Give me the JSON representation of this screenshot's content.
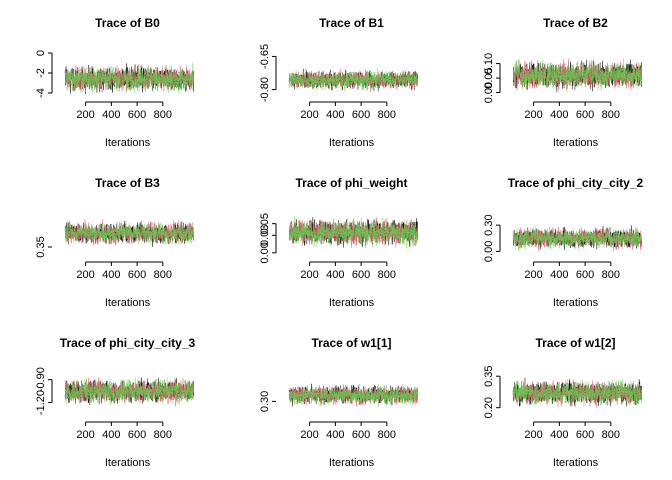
{
  "chart_data": [
    {
      "type": "line",
      "title": "Trace of B0",
      "xlabel": "Iterations",
      "ylabel": "",
      "xlim": [
        1,
        1050
      ],
      "ylim": [
        -4.1,
        0.1
      ],
      "x_ticks": [
        200,
        400,
        600,
        800
      ],
      "y_ticks": [
        -4,
        -2,
        0
      ],
      "series": [
        {
          "center": -2.6,
          "spread": 0.55,
          "color": "#000000"
        },
        {
          "center": -2.6,
          "spread": 0.55,
          "color": "#DF536B"
        },
        {
          "center": -2.6,
          "spread": 0.55,
          "color": "#61D04F"
        }
      ]
    },
    {
      "type": "line",
      "title": "Trace of B1",
      "xlabel": "Iterations",
      "ylabel": "",
      "xlim": [
        1,
        1050
      ],
      "ylim": [
        -0.82,
        -0.63
      ],
      "x_ticks": [
        200,
        400,
        600,
        800
      ],
      "y_ticks": [
        -0.8,
        -0.65
      ],
      "series": [
        {
          "center": -0.755,
          "spread": 0.018,
          "color": "#000000"
        },
        {
          "center": -0.755,
          "spread": 0.018,
          "color": "#DF536B"
        },
        {
          "center": -0.755,
          "spread": 0.018,
          "color": "#61D04F"
        }
      ]
    },
    {
      "type": "line",
      "title": "Trace of B2",
      "xlabel": "Iterations",
      "ylabel": "",
      "xlim": [
        1,
        1050
      ],
      "ylim": [
        -0.005,
        0.14
      ],
      "x_ticks": [
        200,
        400,
        600,
        800
      ],
      "y_ticks": [
        0.0,
        0.05,
        0.1
      ],
      "series": [
        {
          "center": 0.06,
          "spread": 0.02,
          "color": "#000000"
        },
        {
          "center": 0.06,
          "spread": 0.02,
          "color": "#DF536B"
        },
        {
          "center": 0.06,
          "spread": 0.02,
          "color": "#61D04F"
        }
      ]
    },
    {
      "type": "line",
      "title": "Trace of B3",
      "xlabel": "Iterations",
      "ylabel": "",
      "xlim": [
        1,
        1050
      ],
      "ylim": [
        0.32,
        0.5
      ],
      "x_ticks": [
        200,
        400,
        600,
        800
      ],
      "y_ticks": [
        0.35
      ],
      "series": [
        {
          "center": 0.41,
          "spread": 0.02,
          "color": "#000000"
        },
        {
          "center": 0.41,
          "spread": 0.02,
          "color": "#DF536B"
        },
        {
          "center": 0.41,
          "spread": 0.02,
          "color": "#61D04F"
        }
      ]
    },
    {
      "type": "line",
      "title": "Trace of phi_weight",
      "xlabel": "Iterations",
      "ylabel": "",
      "xlim": [
        1,
        1050
      ],
      "ylim": [
        -0.002,
        0.07
      ],
      "x_ticks": [
        200,
        400,
        600,
        800
      ],
      "y_ticks": [
        0.0,
        0.03,
        0.05
      ],
      "series": [
        {
          "center": 0.035,
          "spread": 0.01,
          "color": "#000000"
        },
        {
          "center": 0.035,
          "spread": 0.01,
          "color": "#DF536B"
        },
        {
          "center": 0.035,
          "spread": 0.01,
          "color": "#61D04F"
        }
      ]
    },
    {
      "type": "line",
      "title": "Trace of phi_city_city_2",
      "xlabel": "Iterations",
      "ylabel": "",
      "xlim": [
        1,
        1050
      ],
      "ylim": [
        -0.03,
        0.45
      ],
      "x_ticks": [
        200,
        400,
        600,
        800
      ],
      "y_ticks": [
        0.0,
        0.3
      ],
      "series": [
        {
          "center": 0.15,
          "spread": 0.05,
          "color": "#000000"
        },
        {
          "center": 0.15,
          "spread": 0.05,
          "color": "#DF536B"
        },
        {
          "center": 0.15,
          "spread": 0.05,
          "color": "#61D04F"
        }
      ]
    },
    {
      "type": "line",
      "title": "Trace of phi_city_city_3",
      "xlabel": "Iterations",
      "ylabel": "",
      "xlim": [
        1,
        1050
      ],
      "ylim": [
        -1.35,
        -0.8
      ],
      "x_ticks": [
        200,
        400,
        600,
        800
      ],
      "y_ticks": [
        -1.2,
        -0.9
      ],
      "series": [
        {
          "center": -1.05,
          "spread": 0.07,
          "color": "#000000"
        },
        {
          "center": -1.05,
          "spread": 0.07,
          "color": "#DF536B"
        },
        {
          "center": -1.05,
          "spread": 0.07,
          "color": "#61D04F"
        }
      ]
    },
    {
      "type": "line",
      "title": "Trace of w1[1]",
      "xlabel": "Iterations",
      "ylabel": "",
      "xlim": [
        1,
        1050
      ],
      "ylim": [
        0.24,
        0.44
      ],
      "x_ticks": [
        200,
        400,
        600,
        800
      ],
      "y_ticks": [
        0.3
      ],
      "series": [
        {
          "center": 0.33,
          "spread": 0.02,
          "color": "#000000"
        },
        {
          "center": 0.33,
          "spread": 0.02,
          "color": "#DF536B"
        },
        {
          "center": 0.33,
          "spread": 0.02,
          "color": "#61D04F"
        }
      ]
    },
    {
      "type": "line",
      "title": "Trace of w1[2]",
      "xlabel": "Iterations",
      "ylabel": "",
      "xlim": [
        1,
        1050
      ],
      "ylim": [
        0.17,
        0.37
      ],
      "x_ticks": [
        200,
        400,
        600,
        800
      ],
      "y_ticks": [
        0.2,
        0.35
      ],
      "series": [
        {
          "center": 0.27,
          "spread": 0.025,
          "color": "#000000"
        },
        {
          "center": 0.27,
          "spread": 0.025,
          "color": "#DF536B"
        },
        {
          "center": 0.27,
          "spread": 0.025,
          "color": "#61D04F"
        }
      ]
    }
  ]
}
